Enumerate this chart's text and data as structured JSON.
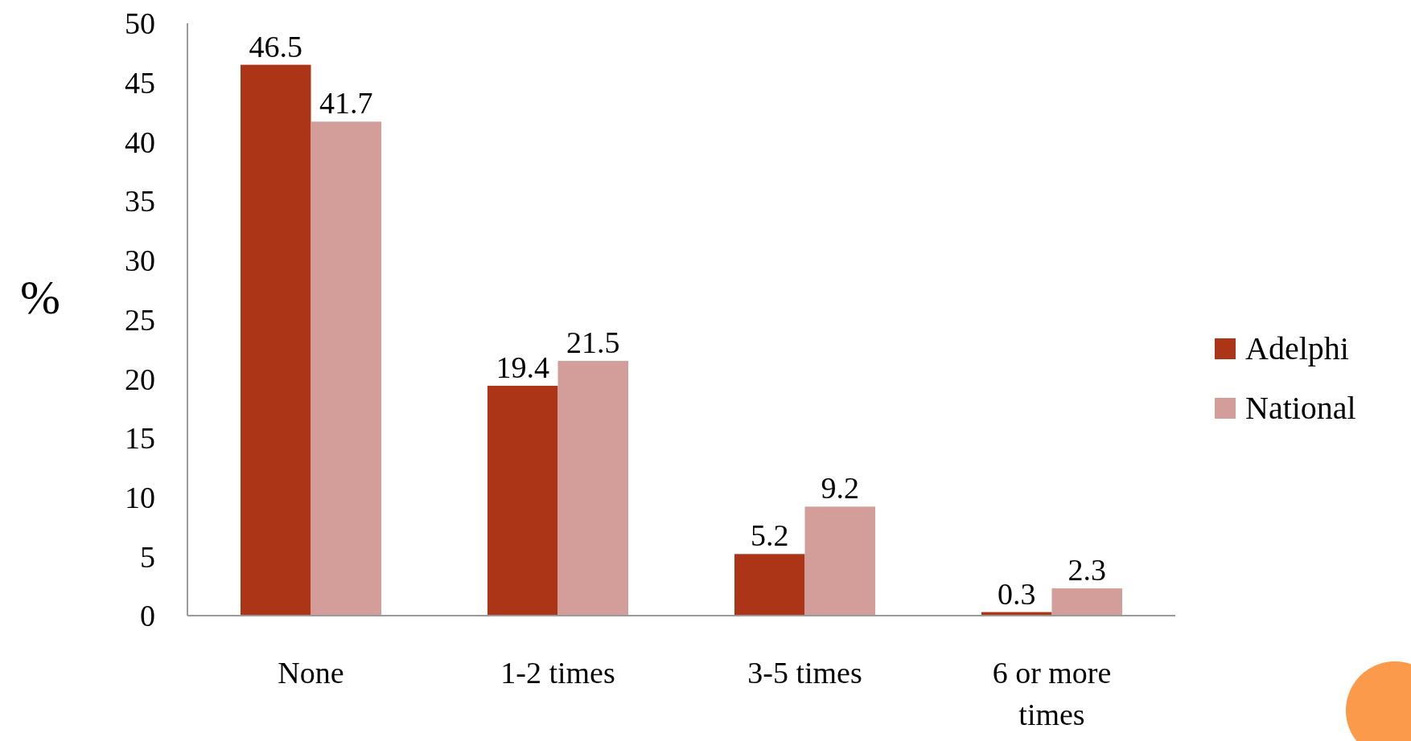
{
  "chart_data": {
    "type": "bar",
    "ylabel": "%",
    "categories": [
      "None",
      "1-2 times",
      "3-5 times",
      "6 or more times"
    ],
    "series": [
      {
        "name": "Adelphi",
        "color": "#ad3517",
        "values": [
          46.5,
          19.4,
          5.2,
          0.3
        ]
      },
      {
        "name": "National",
        "color": "#d39e99",
        "values": [
          41.7,
          21.5,
          9.2,
          2.3
        ]
      }
    ],
    "ylim": [
      0,
      50
    ],
    "yticks": [
      0,
      5,
      10,
      15,
      20,
      25,
      30,
      35,
      40,
      45,
      50
    ],
    "data_labels": true,
    "legend": "right",
    "grid": false
  }
}
